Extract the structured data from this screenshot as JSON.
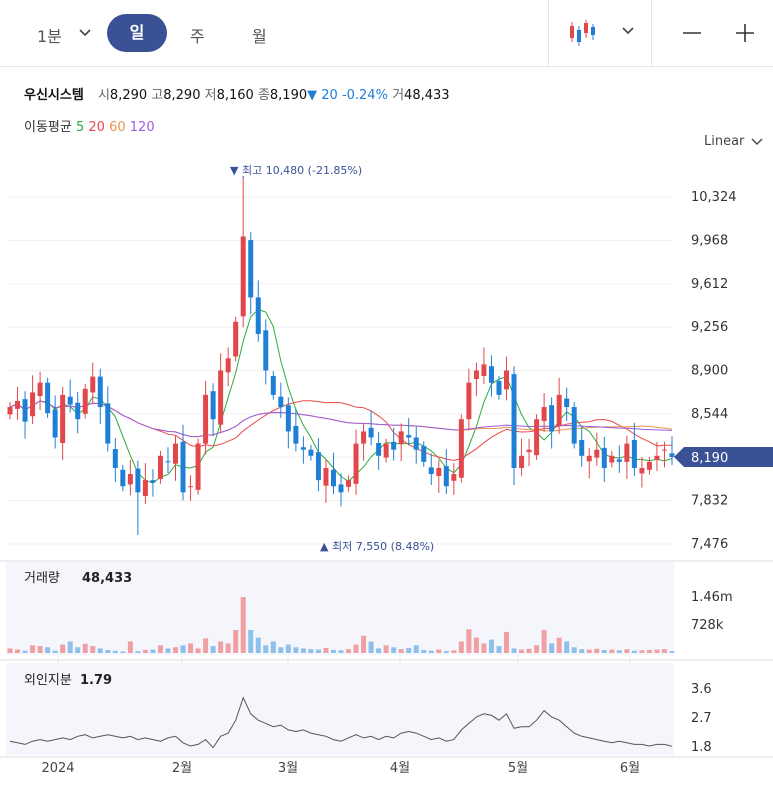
{
  "toolbar": {
    "interval_label": "1분",
    "tabs": [
      "일",
      "주",
      "월"
    ],
    "active_tab": "일"
  },
  "stock": {
    "name": "우신시스템",
    "open_label": "시",
    "open": "8,290",
    "high_label": "고",
    "high": "8,290",
    "low_label": "저",
    "low": "8,160",
    "close_label": "종",
    "close": "8,190",
    "change": "▼ 20",
    "change_pct": "-0.24%",
    "volume_label": "거",
    "volume": "48,433"
  },
  "moving_average": {
    "label": "이동평균",
    "items": [
      {
        "period": "5",
        "color": "#2eaa3c"
      },
      {
        "period": "20",
        "color": "#e84a4a"
      },
      {
        "period": "60",
        "color": "#e8944a"
      },
      {
        "period": "120",
        "color": "#9d5ce0"
      }
    ]
  },
  "scale_mode": "Linear",
  "colors": {
    "up": "#e2474c",
    "down": "#1f7fd6",
    "accent": "#3b5196"
  },
  "chart_data": {
    "type": "candlestick",
    "price_axis": {
      "ticks": [
        "10,324",
        "9,968",
        "9,612",
        "9,256",
        "8,900",
        "8,544",
        "8,190",
        "7,832",
        "7,476"
      ],
      "range": [
        7400,
        10600
      ]
    },
    "current_price": "8,190",
    "max_annotation": {
      "label": "▼ 최고 10,480 (-21.85%)",
      "value": 10480
    },
    "min_annotation": {
      "label": "▲ 최저 7,550 (8.48%)",
      "value": 7550
    },
    "x_labels": [
      "2024",
      "2월",
      "3월",
      "4월",
      "5월",
      "6월"
    ],
    "close": [
      8600,
      8650,
      8480,
      8720,
      8800,
      8550,
      8350,
      8700,
      8620,
      8500,
      8750,
      8850,
      8600,
      8300,
      8100,
      7950,
      8050,
      7900,
      8000,
      7980,
      8200,
      8150,
      8300,
      7900,
      7950,
      8300,
      8700,
      8500,
      8900,
      9000,
      9300,
      10000,
      9500,
      9200,
      8900,
      8700,
      8600,
      8400,
      8300,
      8250,
      8200,
      8000,
      8100,
      7950,
      7900,
      8000,
      8300,
      8400,
      8350,
      8200,
      8300,
      8250,
      8400,
      8350,
      8250,
      8150,
      8050,
      8100,
      7950,
      8050,
      8500,
      8800,
      8900,
      8950,
      8800,
      8700,
      8900,
      8100,
      8200,
      8250,
      8500,
      8600,
      8400,
      8700,
      8600,
      8300,
      8200,
      8200,
      8250,
      8100,
      8200,
      8150,
      8300,
      8100,
      8100,
      8150,
      8200,
      8250,
      8190
    ],
    "volume": {
      "label": "거래량",
      "value": "48,433",
      "axis_ticks": [
        "1.46m",
        "728k"
      ],
      "values": [
        120,
        90,
        60,
        200,
        180,
        150,
        60,
        220,
        300,
        150,
        240,
        180,
        120,
        80,
        60,
        40,
        300,
        50,
        80,
        90,
        200,
        120,
        150,
        200,
        250,
        120,
        380,
        180,
        300,
        250,
        600,
        1460,
        600,
        400,
        200,
        300,
        150,
        220,
        150,
        120,
        100,
        90,
        130,
        80,
        70,
        100,
        220,
        450,
        300,
        120,
        200,
        150,
        100,
        130,
        200,
        80,
        60,
        90,
        50,
        70,
        300,
        620,
        400,
        250,
        350,
        180,
        550,
        120,
        90,
        110,
        200,
        600,
        250,
        400,
        300,
        150,
        100,
        90,
        110,
        80,
        90,
        70,
        100,
        60,
        70,
        80,
        90,
        100,
        48
      ]
    },
    "foreign_ownership": {
      "label": "외인지분",
      "value": "1.79",
      "axis_ticks": [
        "3.6",
        "2.7",
        "1.8"
      ],
      "values": [
        1.95,
        1.9,
        1.85,
        1.95,
        2.0,
        1.95,
        2.0,
        2.05,
        2.0,
        2.1,
        2.15,
        2.05,
        2.1,
        2.15,
        2.1,
        2.05,
        2.1,
        2.0,
        2.05,
        2.0,
        1.95,
        2.05,
        2.1,
        1.9,
        1.8,
        1.85,
        2.0,
        1.75,
        2.1,
        2.2,
        2.6,
        3.3,
        2.8,
        2.6,
        2.5,
        2.4,
        2.45,
        2.3,
        2.25,
        2.3,
        2.2,
        2.15,
        2.1,
        2.0,
        1.95,
        2.05,
        2.15,
        2.05,
        2.1,
        2.0,
        2.1,
        2.05,
        2.2,
        2.25,
        2.2,
        2.1,
        2.0,
        2.05,
        1.95,
        2.0,
        2.3,
        2.5,
        2.7,
        2.8,
        2.75,
        2.6,
        2.8,
        2.35,
        2.4,
        2.4,
        2.6,
        2.9,
        2.7,
        2.6,
        2.4,
        2.2,
        2.1,
        2.05,
        2.0,
        1.95,
        1.9,
        1.95,
        1.9,
        1.85,
        1.85,
        1.8,
        1.85,
        1.85,
        1.79
      ]
    }
  }
}
